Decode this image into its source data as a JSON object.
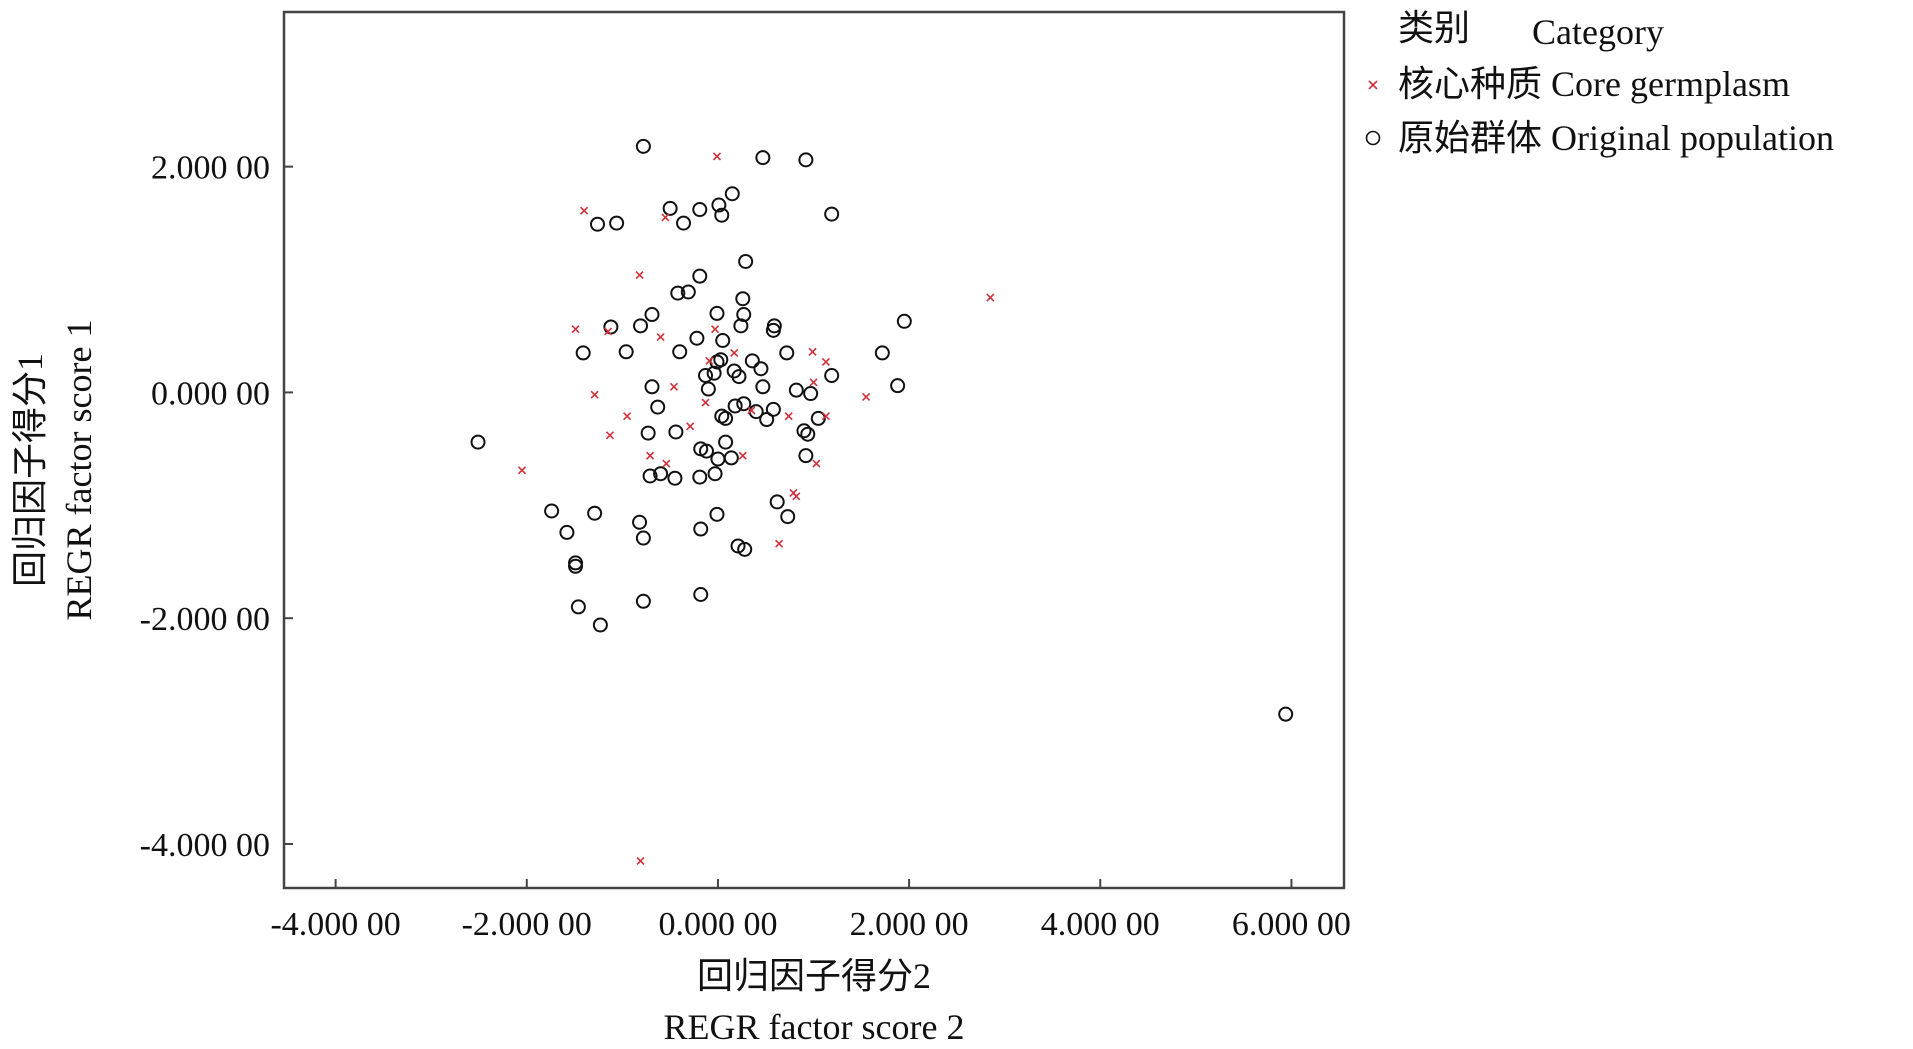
{
  "chart_data": {
    "type": "scatter",
    "title": "",
    "xlabel": [
      "回归因子得分2",
      "REGR factor score 2"
    ],
    "ylabel": [
      "回归因子得分1",
      "REGR factor score 1"
    ],
    "xlim": [
      -4.54,
      6.55
    ],
    "ylim": [
      -4.39,
      3.37
    ],
    "xticks": [
      -4,
      -2,
      0,
      2,
      4,
      6
    ],
    "xtick_labels": [
      "-4.000 00",
      "-2.000 00",
      "0.000 00",
      "2.000 00",
      "4.000 00",
      "6.000 00"
    ],
    "yticks": [
      2,
      0,
      -2,
      -4
    ],
    "ytick_labels": [
      "2.000 00",
      "0.000 00",
      "-2.000 00",
      "-4.000 00"
    ],
    "grid": false,
    "legend": {
      "placement": "right-top",
      "title_cn": "类别",
      "title_en": "Category",
      "entries": [
        "核心种质 Core germplasm",
        "原始群体 Original population"
      ]
    },
    "colors": {
      "core": "#d0303a",
      "original": "#111111"
    },
    "series": [
      {
        "name": "原始群体 Original population",
        "marker": "circle",
        "points": [
          [
            -0.78,
            2.18
          ],
          [
            0.47,
            2.08
          ],
          [
            0.92,
            2.06
          ],
          [
            1.19,
            1.58
          ],
          [
            0.15,
            1.76
          ],
          [
            0.01,
            1.66
          ],
          [
            0.04,
            1.57
          ],
          [
            -0.19,
            1.62
          ],
          [
            -0.5,
            1.63
          ],
          [
            -0.36,
            1.5
          ],
          [
            -1.26,
            1.49
          ],
          [
            -1.06,
            1.5
          ],
          [
            0.29,
            1.16
          ],
          [
            -0.19,
            1.03
          ],
          [
            -0.42,
            0.88
          ],
          [
            -0.31,
            0.89
          ],
          [
            0.26,
            0.83
          ],
          [
            -0.01,
            0.7
          ],
          [
            0.27,
            0.69
          ],
          [
            -0.69,
            0.69
          ],
          [
            0.24,
            0.59
          ],
          [
            0.59,
            0.59
          ],
          [
            0.58,
            0.55
          ],
          [
            1.95,
            0.63
          ],
          [
            -0.81,
            0.59
          ],
          [
            -1.12,
            0.58
          ],
          [
            -0.22,
            0.48
          ],
          [
            0.05,
            0.46
          ],
          [
            -0.4,
            0.36
          ],
          [
            -0.96,
            0.36
          ],
          [
            -1.41,
            0.35
          ],
          [
            0.72,
            0.35
          ],
          [
            1.72,
            0.35
          ],
          [
            0.36,
            0.28
          ],
          [
            -0.01,
            0.27
          ],
          [
            0.03,
            0.29
          ],
          [
            0.45,
            0.21
          ],
          [
            0.17,
            0.19
          ],
          [
            -0.13,
            0.15
          ],
          [
            -0.04,
            0.17
          ],
          [
            1.19,
            0.15
          ],
          [
            0.22,
            0.14
          ],
          [
            -0.69,
            0.05
          ],
          [
            -0.1,
            0.03
          ],
          [
            0.47,
            0.05
          ],
          [
            0.82,
            0.02
          ],
          [
            1.88,
            0.06
          ],
          [
            0.97,
            -0.01
          ],
          [
            -0.63,
            -0.13
          ],
          [
            0.18,
            -0.12
          ],
          [
            0.27,
            -0.1
          ],
          [
            0.58,
            -0.15
          ],
          [
            0.4,
            -0.17
          ],
          [
            0.04,
            -0.21
          ],
          [
            0.08,
            -0.23
          ],
          [
            0.51,
            -0.24
          ],
          [
            1.05,
            -0.23
          ],
          [
            0.9,
            -0.34
          ],
          [
            0.94,
            -0.37
          ],
          [
            -0.73,
            -0.36
          ],
          [
            -0.44,
            -0.35
          ],
          [
            0.08,
            -0.44
          ],
          [
            -2.51,
            -0.44
          ],
          [
            -0.18,
            -0.5
          ],
          [
            -0.12,
            -0.52
          ],
          [
            0.14,
            -0.58
          ],
          [
            0.0,
            -0.59
          ],
          [
            0.92,
            -0.56
          ],
          [
            -0.71,
            -0.74
          ],
          [
            -0.6,
            -0.72
          ],
          [
            -0.45,
            -0.76
          ],
          [
            -0.19,
            -0.75
          ],
          [
            -0.03,
            -0.72
          ],
          [
            0.62,
            -0.97
          ],
          [
            -1.74,
            -1.05
          ],
          [
            -1.29,
            -1.07
          ],
          [
            -0.01,
            -1.08
          ],
          [
            0.73,
            -1.1
          ],
          [
            -0.82,
            -1.15
          ],
          [
            -1.58,
            -1.24
          ],
          [
            -0.18,
            -1.21
          ],
          [
            -0.78,
            -1.29
          ],
          [
            0.21,
            -1.36
          ],
          [
            0.28,
            -1.39
          ],
          [
            -1.49,
            -1.51
          ],
          [
            -1.49,
            -1.54
          ],
          [
            -0.18,
            -1.79
          ],
          [
            -0.78,
            -1.85
          ],
          [
            -1.46,
            -1.9
          ],
          [
            -1.23,
            -2.06
          ],
          [
            5.94,
            -2.85
          ]
        ]
      },
      {
        "name": "核心种质 Core germplasm",
        "marker": "x",
        "points": [
          [
            -0.01,
            2.09
          ],
          [
            -1.4,
            1.61
          ],
          [
            -0.55,
            1.55
          ],
          [
            -0.82,
            1.04
          ],
          [
            2.85,
            0.84
          ],
          [
            -1.49,
            0.56
          ],
          [
            -1.15,
            0.54
          ],
          [
            -0.6,
            0.49
          ],
          [
            -0.03,
            0.56
          ],
          [
            0.99,
            0.36
          ],
          [
            1.13,
            0.27
          ],
          [
            0.17,
            0.35
          ],
          [
            -0.09,
            0.28
          ],
          [
            -0.46,
            0.05
          ],
          [
            1.0,
            0.09
          ],
          [
            -1.29,
            -0.02
          ],
          [
            1.55,
            -0.04
          ],
          [
            -0.13,
            -0.09
          ],
          [
            -0.95,
            -0.21
          ],
          [
            0.35,
            -0.16
          ],
          [
            0.74,
            -0.21
          ],
          [
            1.13,
            -0.21
          ],
          [
            -0.29,
            -0.3
          ],
          [
            -1.13,
            -0.38
          ],
          [
            -0.71,
            -0.56
          ],
          [
            -0.54,
            -0.63
          ],
          [
            0.26,
            -0.56
          ],
          [
            1.03,
            -0.63
          ],
          [
            -2.05,
            -0.69
          ],
          [
            0.79,
            -0.89
          ],
          [
            0.82,
            -0.92
          ],
          [
            0.64,
            -1.34
          ],
          [
            -0.81,
            -4.15
          ]
        ]
      }
    ]
  }
}
